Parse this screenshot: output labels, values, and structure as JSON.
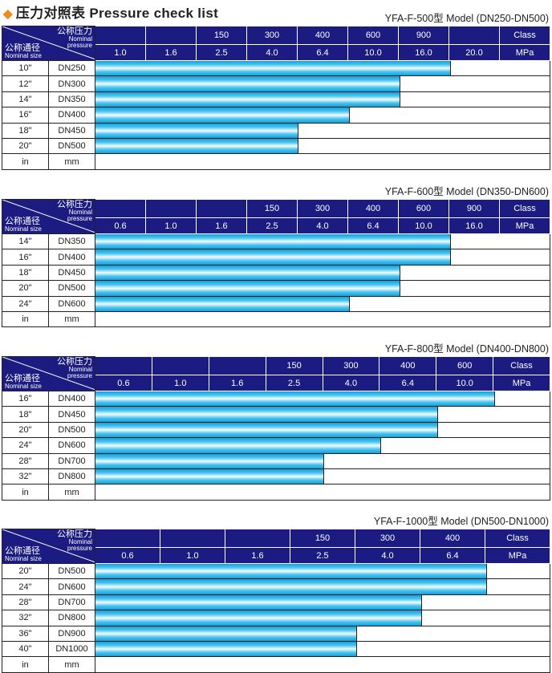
{
  "page_title": "压力对照表 Pressure check list",
  "corner": {
    "pressure_cn": "公称压力",
    "pressure_en1": "Nominal",
    "pressure_en2": "pressure",
    "size_cn": "公称通径",
    "size_en": "Nominal size"
  },
  "colors": {
    "header": "#1b1b82",
    "bar": "#45c4f0",
    "diamond": "#f08a1c"
  },
  "tables": [
    {
      "model": "YFA-F-500型  Model (DN250-DN500)",
      "class": [
        "",
        "",
        "150",
        "300",
        "400",
        "600",
        "900",
        "",
        "Class"
      ],
      "mpa": [
        "1.0",
        "1.6",
        "2.5",
        "4.0",
        "6.4",
        "10.0",
        "16.0",
        "20.0",
        "MPa"
      ],
      "rows": [
        {
          "in": "10\"",
          "dn": "DN250",
          "max_mpa": "16.0"
        },
        {
          "in": "12\"",
          "dn": "DN300",
          "max_mpa": "10.0"
        },
        {
          "in": "14\"",
          "dn": "DN350",
          "max_mpa": "10.0"
        },
        {
          "in": "16\"",
          "dn": "DN400",
          "max_mpa": "6.4"
        },
        {
          "in": "18\"",
          "dn": "DN450",
          "max_mpa": "4.0"
        },
        {
          "in": "20\"",
          "dn": "DN500",
          "max_mpa": "4.0"
        },
        {
          "in": "in",
          "dn": "mm",
          "max_mpa": null
        }
      ]
    },
    {
      "model": "YFA-F-600型  Model (DN350-DN600)",
      "class": [
        "",
        "",
        "",
        "150",
        "300",
        "400",
        "600",
        "900",
        "Class"
      ],
      "mpa": [
        "0.6",
        "1.0",
        "1.6",
        "2.5",
        "4.0",
        "6.4",
        "10.0",
        "16.0",
        "MPa"
      ],
      "rows": [
        {
          "in": "14\"",
          "dn": "DN350",
          "max_mpa": "10.0"
        },
        {
          "in": "16\"",
          "dn": "DN400",
          "max_mpa": "10.0"
        },
        {
          "in": "18\"",
          "dn": "DN450",
          "max_mpa": "6.4"
        },
        {
          "in": "20\"",
          "dn": "DN500",
          "max_mpa": "6.4"
        },
        {
          "in": "24\"",
          "dn": "DN600",
          "max_mpa": "4.0"
        },
        {
          "in": "in",
          "dn": "mm",
          "max_mpa": null
        }
      ]
    },
    {
      "model": "YFA-F-800型  Model (DN400-DN800)",
      "class": [
        "",
        "",
        "",
        "150",
        "300",
        "400",
        "600",
        "Class"
      ],
      "mpa": [
        "0.6",
        "1.0",
        "1.6",
        "2.5",
        "4.0",
        "6.4",
        "10.0",
        "MPa"
      ],
      "rows": [
        {
          "in": "16\"",
          "dn": "DN400",
          "max_mpa": "10.0"
        },
        {
          "in": "18\"",
          "dn": "DN450",
          "max_mpa": "6.4"
        },
        {
          "in": "20\"",
          "dn": "DN500",
          "max_mpa": "6.4"
        },
        {
          "in": "24\"",
          "dn": "DN600",
          "max_mpa": "4.0"
        },
        {
          "in": "28\"",
          "dn": "DN700",
          "max_mpa": "2.5"
        },
        {
          "in": "32\"",
          "dn": "DN800",
          "max_mpa": "2.5"
        },
        {
          "in": "in",
          "dn": "mm",
          "max_mpa": null
        }
      ]
    },
    {
      "model": "YFA-F-1000型  Model (DN500-DN1000)",
      "class": [
        "",
        "",
        "",
        "150",
        "300",
        "400",
        "Class"
      ],
      "mpa": [
        "0.6",
        "1.0",
        "1.6",
        "2.5",
        "4.0",
        "6.4",
        "MPa"
      ],
      "rows": [
        {
          "in": "20\"",
          "dn": "DN500",
          "max_mpa": "6.4"
        },
        {
          "in": "24\"",
          "dn": "DN600",
          "max_mpa": "6.4"
        },
        {
          "in": "28\"",
          "dn": "DN700",
          "max_mpa": "4.0"
        },
        {
          "in": "32\"",
          "dn": "DN800",
          "max_mpa": "4.0"
        },
        {
          "in": "36\"",
          "dn": "DN900",
          "max_mpa": "2.5"
        },
        {
          "in": "40\"",
          "dn": "DN1000",
          "max_mpa": "2.5"
        },
        {
          "in": "in",
          "dn": "mm",
          "max_mpa": null
        }
      ]
    }
  ]
}
